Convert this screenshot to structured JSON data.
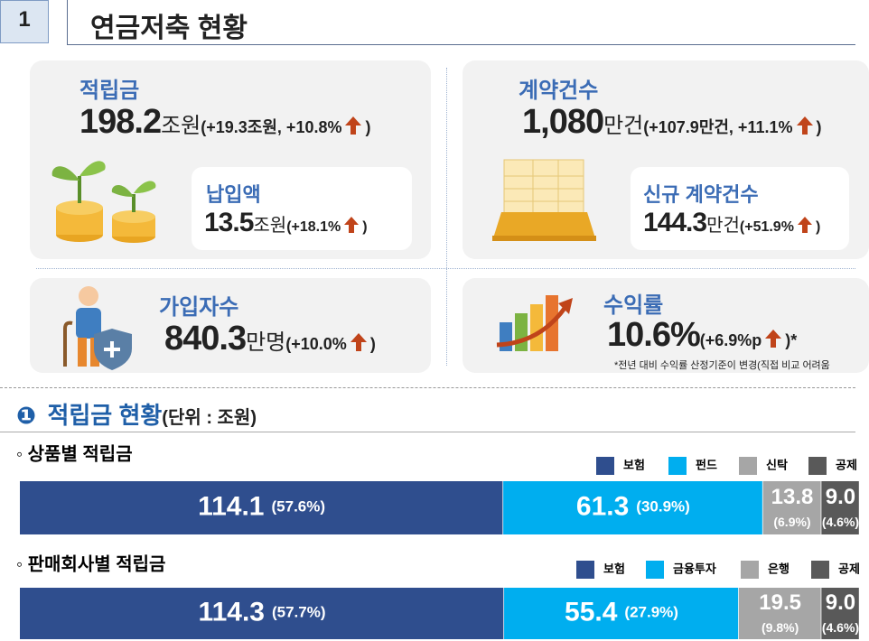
{
  "header": {
    "number": "1",
    "title": "연금저축 현황"
  },
  "cards": [
    {
      "label": "적립금",
      "value": "198.2",
      "unit": "조원",
      "change": "(+19.3조원, +10.8%",
      "close": ")",
      "sub": {
        "label": "납입액",
        "value": "13.5",
        "unit": "조원",
        "change": "(+18.1%",
        "close": ")"
      }
    },
    {
      "label": "계약건수",
      "value": "1,080",
      "unit": "만건",
      "change": "(+107.9만건, +11.1%",
      "close": ")",
      "sub": {
        "label": "신규 계약건수",
        "value": "144.3",
        "unit": "만건",
        "change": "(+51.9%",
        "close": ")"
      }
    },
    {
      "label": "가입자수",
      "value": "840.3",
      "unit": "만명",
      "change": "(+10.0%",
      "close": ")"
    },
    {
      "label": "수익률",
      "value": "10.6%",
      "change": "(+6.9%p",
      "close": ")*",
      "note": "*전년 대비 수익률 산정기준이 변경(직접 비교 어려움"
    }
  ],
  "section": {
    "number": "❶",
    "title": "적립금 현황",
    "unit": "(단위 : 조원)"
  },
  "chart_data": [
    {
      "type": "stacked-bar",
      "title": "◦ 상품별 적립금",
      "series": [
        {
          "name": "보험",
          "color": "#2f4e8e",
          "values": [
            114.1
          ],
          "value_labels": [
            "114.1"
          ],
          "shares": [
            57.6
          ],
          "share_labels": [
            "(57.6%)"
          ]
        },
        {
          "name": "펀드",
          "color": "#00aeef",
          "values": [
            61.3
          ],
          "value_labels": [
            "61.3"
          ],
          "shares": [
            30.9
          ],
          "share_labels": [
            "(30.9%)"
          ]
        },
        {
          "name": "신탁",
          "color": "#a6a6a6",
          "values": [
            13.8
          ],
          "value_labels": [
            "13.8"
          ],
          "shares": [
            6.9
          ],
          "share_labels": [
            "(6.9%)"
          ]
        },
        {
          "name": "공제",
          "color": "#595959",
          "values": [
            9.0
          ],
          "value_labels": [
            "9.0"
          ],
          "shares": [
            4.6
          ],
          "share_labels": [
            "(4.6%)"
          ]
        }
      ]
    },
    {
      "type": "stacked-bar",
      "title": "◦ 판매회사별 적립금",
      "series": [
        {
          "name": "보험",
          "color": "#2f4e8e",
          "values": [
            114.3
          ],
          "value_labels": [
            "114.3"
          ],
          "shares": [
            57.7
          ],
          "share_labels": [
            "(57.7%)"
          ]
        },
        {
          "name": "금융투자",
          "color": "#00aeef",
          "values": [
            55.4
          ],
          "value_labels": [
            "55.4"
          ],
          "shares": [
            27.9
          ],
          "share_labels": [
            "(27.9%)"
          ]
        },
        {
          "name": "은행",
          "color": "#a6a6a6",
          "values": [
            19.5
          ],
          "value_labels": [
            "19.5"
          ],
          "shares": [
            9.8
          ],
          "share_labels": [
            "(9.8%)"
          ]
        },
        {
          "name": "공제",
          "color": "#595959",
          "values": [
            9.0
          ],
          "value_labels": [
            "9.0"
          ],
          "shares": [
            4.6
          ],
          "share_labels": [
            "(4.6%)"
          ]
        }
      ]
    }
  ]
}
